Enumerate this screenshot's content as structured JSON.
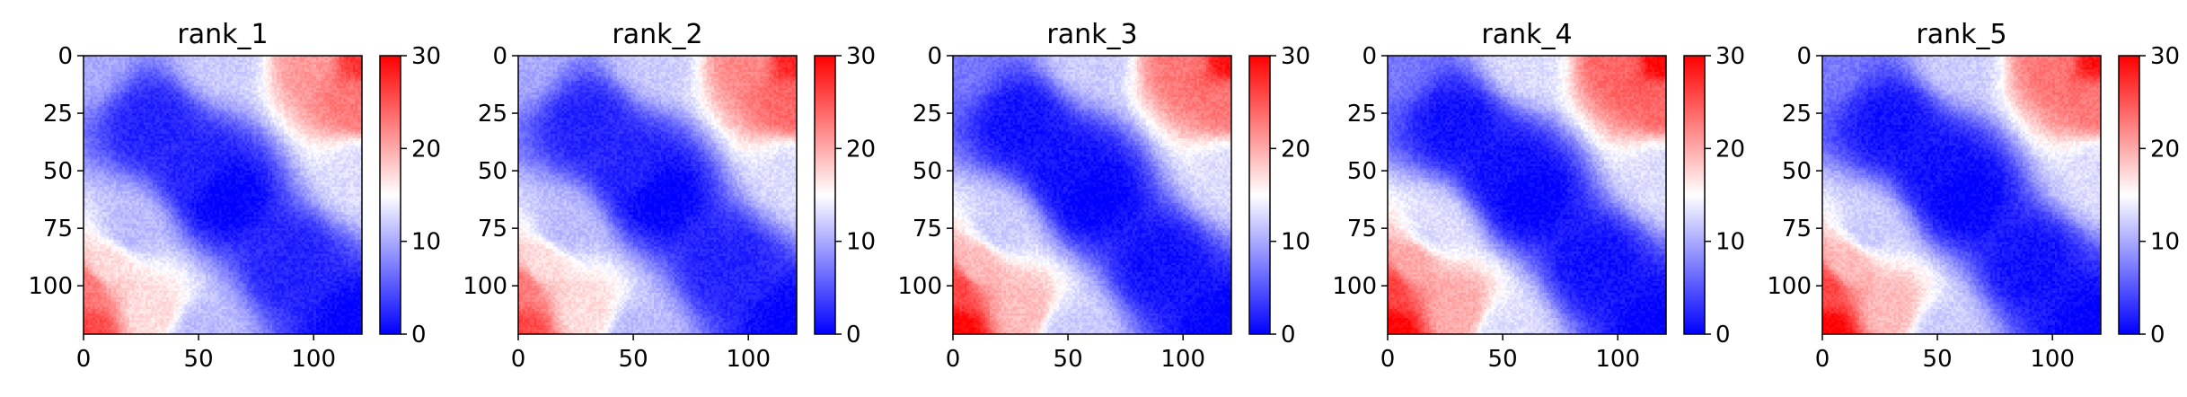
{
  "chart_data": [
    {
      "type": "heatmap",
      "title": "rank_1",
      "x_ticks": [
        0,
        50,
        100
      ],
      "y_ticks": [
        0,
        25,
        50,
        75,
        100
      ],
      "xlim": [
        0,
        121
      ],
      "ylim": [
        121,
        0
      ],
      "n": 121,
      "colorbar": {
        "ticks": [
          0,
          10,
          20,
          30
        ],
        "range": [
          0,
          30
        ],
        "colormap": "bwr"
      },
      "values": [
        [
          0,
          0,
          10
        ],
        [
          30,
          30,
          2
        ],
        [
          60,
          60,
          0
        ],
        [
          90,
          90,
          2
        ],
        [
          120,
          120,
          0
        ],
        [
          0,
          60,
          12
        ],
        [
          0,
          100,
          21
        ],
        [
          0,
          120,
          27
        ],
        [
          20,
          120,
          23
        ],
        [
          50,
          120,
          13
        ],
        [
          100,
          0,
          23
        ],
        [
          120,
          0,
          26
        ],
        [
          110,
          30,
          17
        ],
        [
          120,
          50,
          11
        ],
        [
          50,
          50,
          2
        ],
        [
          75,
          20,
          11
        ],
        [
          90,
          10,
          17
        ]
      ]
    },
    {
      "type": "heatmap",
      "title": "rank_2",
      "x_ticks": [
        0,
        50,
        100
      ],
      "y_ticks": [
        0,
        25,
        50,
        75,
        100
      ],
      "xlim": [
        0,
        121
      ],
      "ylim": [
        121,
        0
      ],
      "n": 121,
      "colorbar": {
        "ticks": [
          0,
          10,
          20,
          30
        ],
        "range": [
          0,
          30
        ],
        "colormap": "bwr"
      },
      "values": [
        [
          0,
          0,
          10
        ],
        [
          30,
          30,
          2
        ],
        [
          60,
          60,
          0
        ],
        [
          90,
          90,
          2
        ],
        [
          120,
          120,
          0
        ],
        [
          0,
          60,
          12
        ],
        [
          0,
          100,
          22
        ],
        [
          0,
          120,
          28
        ],
        [
          20,
          120,
          24
        ],
        [
          50,
          120,
          13
        ],
        [
          100,
          0,
          23
        ],
        [
          120,
          0,
          26
        ],
        [
          110,
          30,
          17
        ],
        [
          120,
          50,
          11
        ],
        [
          50,
          50,
          2
        ],
        [
          75,
          20,
          11
        ],
        [
          90,
          10,
          17
        ]
      ]
    },
    {
      "type": "heatmap",
      "title": "rank_3",
      "x_ticks": [
        0,
        50,
        100
      ],
      "y_ticks": [
        0,
        25,
        50,
        75,
        100
      ],
      "xlim": [
        0,
        121
      ],
      "ylim": [
        121,
        0
      ],
      "n": 121,
      "colorbar": {
        "ticks": [
          0,
          10,
          20,
          30
        ],
        "range": [
          0,
          30
        ],
        "colormap": "bwr"
      },
      "values": [
        [
          0,
          0,
          7
        ],
        [
          30,
          30,
          1
        ],
        [
          60,
          60,
          0
        ],
        [
          90,
          90,
          1
        ],
        [
          120,
          120,
          0
        ],
        [
          0,
          60,
          12
        ],
        [
          0,
          100,
          23
        ],
        [
          0,
          120,
          29
        ],
        [
          20,
          120,
          23
        ],
        [
          50,
          120,
          13
        ],
        [
          100,
          0,
          26
        ],
        [
          120,
          0,
          30
        ],
        [
          110,
          30,
          19
        ],
        [
          120,
          50,
          12
        ],
        [
          50,
          50,
          1
        ],
        [
          75,
          20,
          12
        ],
        [
          90,
          10,
          19
        ]
      ]
    },
    {
      "type": "heatmap",
      "title": "rank_4",
      "x_ticks": [
        0,
        50,
        100
      ],
      "y_ticks": [
        0,
        25,
        50,
        75,
        100
      ],
      "xlim": [
        0,
        121
      ],
      "ylim": [
        121,
        0
      ],
      "n": 121,
      "colorbar": {
        "ticks": [
          0,
          10,
          20,
          30
        ],
        "range": [
          0,
          30
        ],
        "colormap": "bwr"
      },
      "values": [
        [
          0,
          0,
          7
        ],
        [
          30,
          30,
          1
        ],
        [
          60,
          60,
          0
        ],
        [
          90,
          90,
          1
        ],
        [
          120,
          120,
          0
        ],
        [
          0,
          60,
          13
        ],
        [
          0,
          100,
          24
        ],
        [
          0,
          120,
          30
        ],
        [
          20,
          120,
          24
        ],
        [
          50,
          120,
          13
        ],
        [
          100,
          0,
          26
        ],
        [
          120,
          0,
          30
        ],
        [
          110,
          30,
          20
        ],
        [
          120,
          50,
          13
        ],
        [
          50,
          50,
          1
        ],
        [
          75,
          20,
          13
        ],
        [
          90,
          10,
          20
        ]
      ]
    },
    {
      "type": "heatmap",
      "title": "rank_5",
      "x_ticks": [
        0,
        50,
        100
      ],
      "y_ticks": [
        0,
        25,
        50,
        75,
        100
      ],
      "xlim": [
        0,
        121
      ],
      "ylim": [
        121,
        0
      ],
      "n": 121,
      "colorbar": {
        "ticks": [
          0,
          10,
          20,
          30
        ],
        "range": [
          0,
          30
        ],
        "colormap": "bwr"
      },
      "values": [
        [
          0,
          0,
          7
        ],
        [
          30,
          30,
          1
        ],
        [
          60,
          60,
          0
        ],
        [
          90,
          90,
          1
        ],
        [
          120,
          120,
          0
        ],
        [
          0,
          60,
          12
        ],
        [
          0,
          100,
          23
        ],
        [
          0,
          120,
          29
        ],
        [
          20,
          120,
          23
        ],
        [
          50,
          120,
          13
        ],
        [
          100,
          0,
          26
        ],
        [
          120,
          0,
          30
        ],
        [
          110,
          30,
          19
        ],
        [
          120,
          50,
          12
        ],
        [
          50,
          50,
          1
        ],
        [
          75,
          20,
          12
        ],
        [
          90,
          10,
          19
        ]
      ]
    }
  ],
  "colors": {
    "low": "#0000ff",
    "mid": "#ffffff",
    "high": "#ff0000",
    "axis": "#000000"
  }
}
